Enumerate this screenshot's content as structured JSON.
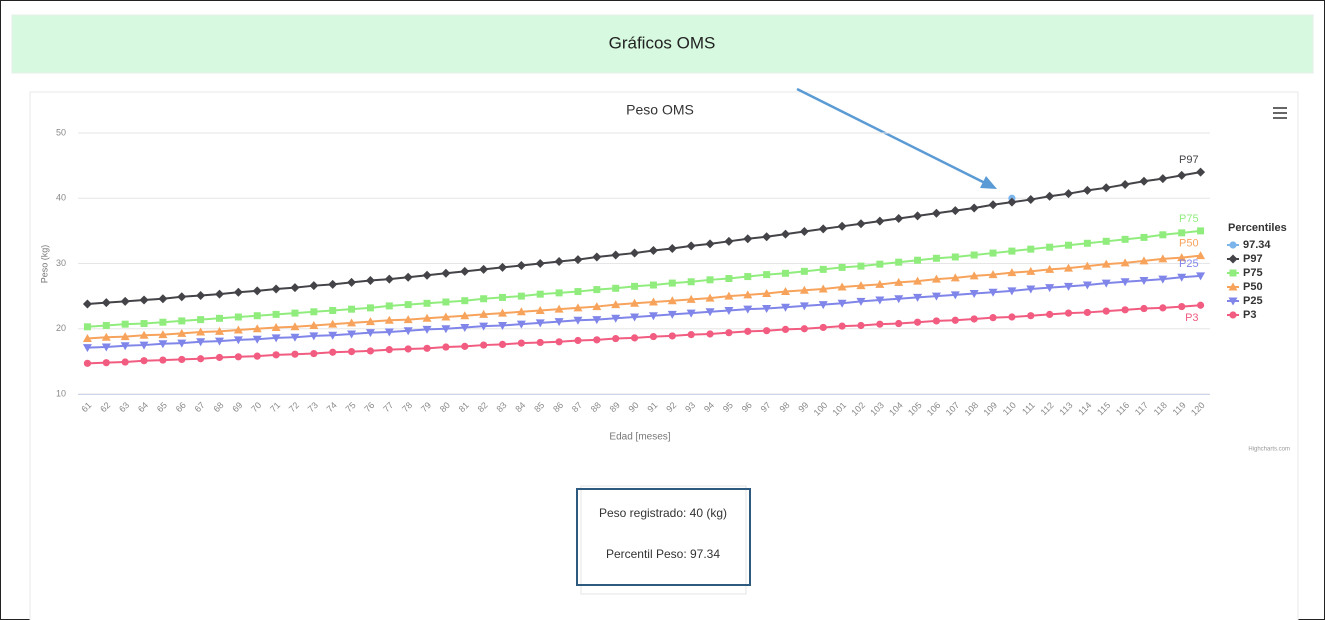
{
  "page": {
    "header": "Gráficos OMS",
    "menu_label": "Highcharts.com"
  },
  "info": {
    "lines": [
      "Peso registrado: 40 (kg)",
      "Percentil Peso: 97.34"
    ]
  },
  "chart_data": {
    "type": "line",
    "title": "Peso OMS",
    "x_label": "Edad [meses]",
    "y_label": "Peso (kg)",
    "legend_title": "Percentiles",
    "legend": "right",
    "grid": true,
    "ylim": [
      10,
      50
    ],
    "yticks": [
      10,
      20,
      30,
      40,
      50
    ],
    "categories": [
      61,
      62,
      63,
      64,
      65,
      66,
      67,
      68,
      69,
      70,
      71,
      72,
      73,
      74,
      75,
      76,
      77,
      78,
      79,
      80,
      81,
      82,
      83,
      84,
      85,
      86,
      87,
      88,
      89,
      90,
      91,
      92,
      93,
      94,
      95,
      96,
      97,
      98,
      99,
      100,
      101,
      102,
      103,
      104,
      105,
      106,
      107,
      108,
      109,
      110,
      111,
      112,
      113,
      114,
      115,
      116,
      117,
      118,
      119,
      120
    ],
    "series": [
      {
        "name": "97.34",
        "color": "#7cb5ec",
        "marker": "circle",
        "values": [
          null,
          null,
          null,
          null,
          null,
          null,
          null,
          null,
          null,
          null,
          null,
          null,
          null,
          null,
          null,
          null,
          null,
          null,
          null,
          null,
          null,
          null,
          null,
          null,
          null,
          null,
          null,
          null,
          null,
          null,
          null,
          null,
          null,
          null,
          null,
          null,
          null,
          null,
          null,
          null,
          null,
          null,
          null,
          null,
          null,
          null,
          null,
          null,
          null,
          40,
          null,
          null,
          null,
          null,
          null,
          null,
          null,
          null,
          null,
          null
        ]
      },
      {
        "name": "P97",
        "color": "#434348",
        "marker": "diamond",
        "values": [
          23.8,
          24.0,
          24.2,
          24.4,
          24.6,
          24.9,
          25.1,
          25.3,
          25.6,
          25.8,
          26.1,
          26.3,
          26.6,
          26.8,
          27.1,
          27.4,
          27.6,
          27.9,
          28.2,
          28.5,
          28.8,
          29.1,
          29.4,
          29.7,
          30.0,
          30.3,
          30.6,
          31.0,
          31.3,
          31.6,
          32.0,
          32.3,
          32.7,
          33.0,
          33.4,
          33.8,
          34.1,
          34.5,
          34.9,
          35.3,
          35.7,
          36.1,
          36.5,
          36.9,
          37.3,
          37.7,
          38.1,
          38.5,
          39.0,
          39.4,
          39.8,
          40.3,
          40.7,
          41.2,
          41.6,
          42.1,
          42.6,
          43.0,
          43.5,
          44.0
        ]
      },
      {
        "name": "P75",
        "color": "#90ed7d",
        "marker": "square",
        "values": [
          20.3,
          20.5,
          20.7,
          20.8,
          21.0,
          21.2,
          21.4,
          21.6,
          21.8,
          22.0,
          22.2,
          22.4,
          22.6,
          22.8,
          23.0,
          23.2,
          23.5,
          23.7,
          23.9,
          24.1,
          24.3,
          24.6,
          24.8,
          25.0,
          25.3,
          25.5,
          25.7,
          26.0,
          26.2,
          26.5,
          26.7,
          27.0,
          27.2,
          27.5,
          27.7,
          28.0,
          28.3,
          28.5,
          28.8,
          29.1,
          29.4,
          29.6,
          29.9,
          30.2,
          30.5,
          30.8,
          31.0,
          31.3,
          31.6,
          31.9,
          32.2,
          32.5,
          32.8,
          33.1,
          33.4,
          33.7,
          34.0,
          34.4,
          34.7,
          35.0
        ]
      },
      {
        "name": "P50",
        "color": "#f7a35c",
        "marker": "triangle",
        "values": [
          18.5,
          18.7,
          18.8,
          19.0,
          19.1,
          19.3,
          19.5,
          19.6,
          19.8,
          20.0,
          20.2,
          20.3,
          20.5,
          20.7,
          20.9,
          21.1,
          21.3,
          21.4,
          21.6,
          21.8,
          22.0,
          22.2,
          22.4,
          22.6,
          22.8,
          23.0,
          23.2,
          23.4,
          23.7,
          23.9,
          24.1,
          24.3,
          24.5,
          24.7,
          25.0,
          25.2,
          25.4,
          25.7,
          25.9,
          26.1,
          26.4,
          26.6,
          26.8,
          27.1,
          27.3,
          27.6,
          27.8,
          28.1,
          28.3,
          28.6,
          28.8,
          29.1,
          29.3,
          29.6,
          29.9,
          30.1,
          30.4,
          30.7,
          30.9,
          31.2
        ]
      },
      {
        "name": "P25",
        "color": "#8085e9",
        "marker": "triangle-down",
        "values": [
          17.1,
          17.2,
          17.4,
          17.5,
          17.7,
          17.8,
          18.0,
          18.1,
          18.3,
          18.4,
          18.6,
          18.7,
          18.9,
          19.0,
          19.2,
          19.4,
          19.5,
          19.7,
          19.9,
          20.0,
          20.2,
          20.4,
          20.5,
          20.7,
          20.9,
          21.1,
          21.3,
          21.4,
          21.6,
          21.8,
          22.0,
          22.2,
          22.4,
          22.6,
          22.8,
          23.0,
          23.1,
          23.3,
          23.5,
          23.7,
          23.9,
          24.2,
          24.4,
          24.6,
          24.8,
          25.0,
          25.2,
          25.4,
          25.6,
          25.8,
          26.1,
          26.3,
          26.5,
          26.7,
          27.0,
          27.2,
          27.4,
          27.6,
          27.9,
          28.1
        ]
      },
      {
        "name": "P3",
        "color": "#f15c80",
        "marker": "circle",
        "values": [
          14.7,
          14.8,
          14.9,
          15.1,
          15.2,
          15.3,
          15.4,
          15.6,
          15.7,
          15.8,
          16.0,
          16.1,
          16.2,
          16.4,
          16.5,
          16.6,
          16.8,
          16.9,
          17.0,
          17.2,
          17.3,
          17.5,
          17.6,
          17.8,
          17.9,
          18.0,
          18.2,
          18.3,
          18.5,
          18.6,
          18.8,
          18.9,
          19.1,
          19.2,
          19.4,
          19.6,
          19.7,
          19.9,
          20.0,
          20.2,
          20.4,
          20.5,
          20.7,
          20.8,
          21.0,
          21.2,
          21.3,
          21.5,
          21.7,
          21.8,
          22.0,
          22.2,
          22.4,
          22.5,
          22.7,
          22.9,
          23.1,
          23.2,
          23.4,
          23.6
        ]
      }
    ]
  }
}
